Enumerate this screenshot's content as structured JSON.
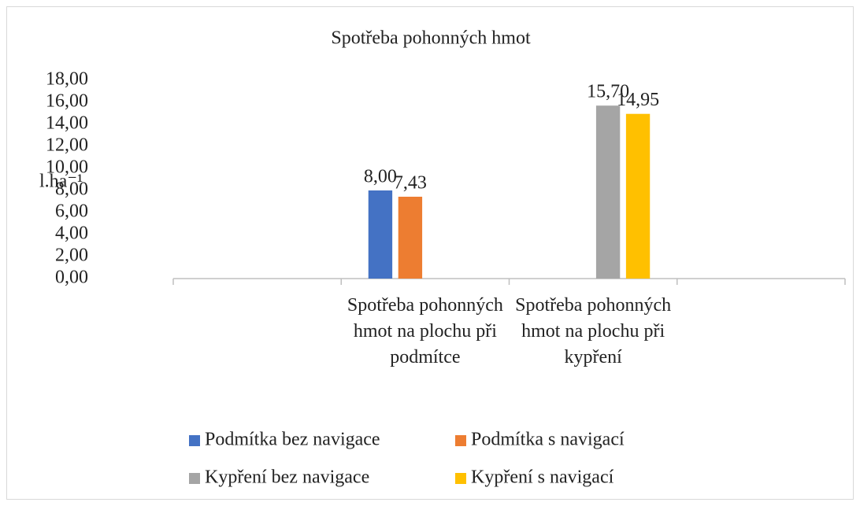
{
  "chart_data": {
    "type": "bar",
    "title": "Spotřeba pohonných hmot",
    "y_label": "l.ha⁻¹",
    "categories": [
      null,
      "Spotřeba pohonných hmot na plochu při podmítce",
      "Spotřeba pohonných hmot na plochu při kypření",
      null
    ],
    "series": [
      {
        "name": "Podmítka bez navigace",
        "color": "#4472c4",
        "values": [
          null,
          8.0,
          null,
          null
        ],
        "value_labels": [
          null,
          "8,00",
          null,
          null
        ]
      },
      {
        "name": "Podmítka s navigací",
        "color": "#ed7d31",
        "values": [
          null,
          7.43,
          null,
          null
        ],
        "value_labels": [
          null,
          "7,43",
          null,
          null
        ]
      },
      {
        "name": "Kypření bez navigace",
        "color": "#a5a5a5",
        "values": [
          null,
          null,
          15.7,
          null
        ],
        "value_labels": [
          null,
          null,
          "15,70",
          null
        ]
      },
      {
        "name": "Kypření s navigací",
        "color": "#ffc000",
        "values": [
          null,
          null,
          14.95,
          null
        ],
        "value_labels": [
          null,
          null,
          "14,95",
          null
        ]
      }
    ],
    "ylim": [
      0,
      18
    ],
    "yticks": [
      {
        "value": 0,
        "label": "0,00"
      },
      {
        "value": 2,
        "label": "2,00"
      },
      {
        "value": 4,
        "label": "4,00"
      },
      {
        "value": 6,
        "label": "6,00"
      },
      {
        "value": 8,
        "label": "8,00"
      },
      {
        "value": 10,
        "label": "10,00"
      },
      {
        "value": 12,
        "label": "12,00"
      },
      {
        "value": 14,
        "label": "14,00"
      },
      {
        "value": 16,
        "label": "16,00"
      },
      {
        "value": 18,
        "label": "18,00"
      }
    ],
    "grid": false,
    "legend": "bottom"
  }
}
